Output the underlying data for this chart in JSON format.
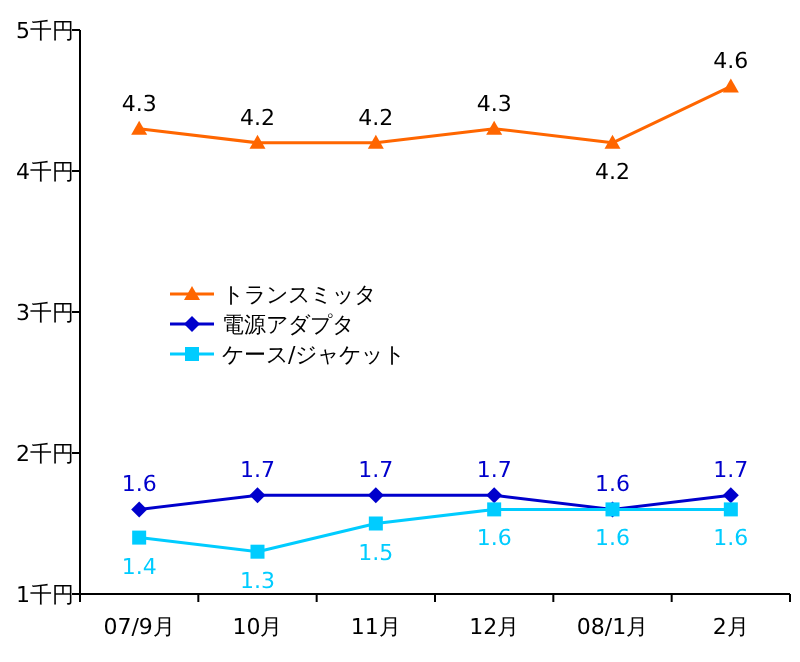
{
  "chart_data": {
    "type": "line",
    "categories": [
      "07/9月",
      "10月",
      "11月",
      "12月",
      "08/1月",
      "2月"
    ],
    "series": [
      {
        "name": "トランスミッタ",
        "color": "#ff6600",
        "marker": "triangle",
        "values": [
          4.3,
          4.2,
          4.2,
          4.3,
          4.2,
          4.6
        ]
      },
      {
        "name": "電源アダプタ",
        "color": "#0000cc",
        "marker": "diamond",
        "values": [
          1.6,
          1.7,
          1.7,
          1.7,
          1.6,
          1.7
        ]
      },
      {
        "name": "ケース/ジャケット",
        "color": "#00ccff",
        "marker": "square",
        "values": [
          1.4,
          1.3,
          1.5,
          1.6,
          1.6,
          1.6
        ]
      }
    ],
    "ylim": [
      1,
      5
    ],
    "yticks": [
      {
        "value": 1,
        "label": "1千円"
      },
      {
        "value": 2,
        "label": "2千円"
      },
      {
        "value": 3,
        "label": "3千円"
      },
      {
        "value": 4,
        "label": "4千円"
      },
      {
        "value": 5,
        "label": "5千円"
      }
    ],
    "data_labels": true,
    "legend": "left",
    "grid": false
  }
}
